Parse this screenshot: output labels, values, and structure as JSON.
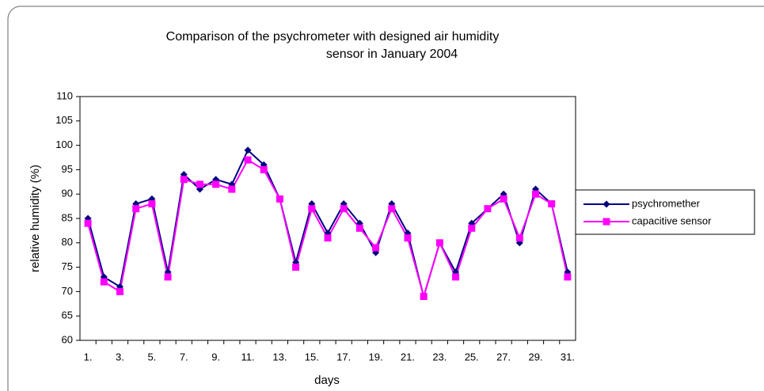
{
  "chart_data": {
    "type": "line",
    "title": [
      "Comparison of the psychrometer with designed air humidity",
      "sensor in January  2004"
    ],
    "xlabel": "days",
    "ylabel": "relative humidity (%)",
    "categories": [
      "1.",
      null,
      "3.",
      null,
      "5.",
      null,
      "7.",
      null,
      "9.",
      null,
      "11.",
      null,
      "13.",
      null,
      "15.",
      null,
      "17.",
      null,
      "19.",
      null,
      "21.",
      null,
      "23.",
      null,
      "25.",
      null,
      "27.",
      null,
      "29.",
      null,
      "31."
    ],
    "series": [
      {
        "name": "psychromether",
        "color": "#000080",
        "marker": "diamond",
        "values": [
          85,
          73,
          71,
          88,
          89,
          74,
          94,
          91,
          93,
          92,
          99,
          96,
          89,
          76,
          88,
          82,
          88,
          84,
          78,
          88,
          82,
          69,
          80,
          74,
          84,
          87,
          90,
          80,
          91,
          88,
          74
        ]
      },
      {
        "name": "capacitive sensor",
        "color": "#ff00ff",
        "marker": "square",
        "values": [
          84,
          72,
          70,
          87,
          88,
          73,
          93,
          92,
          92,
          91,
          97,
          95,
          89,
          75,
          87,
          81,
          87,
          83,
          79,
          87,
          81,
          69,
          80,
          73,
          83,
          87,
          89,
          81,
          90,
          88,
          73
        ]
      }
    ],
    "ylim": [
      60,
      110
    ],
    "yticks": [
      60,
      65,
      70,
      75,
      80,
      85,
      90,
      95,
      100,
      105,
      110
    ],
    "legend": "right"
  }
}
